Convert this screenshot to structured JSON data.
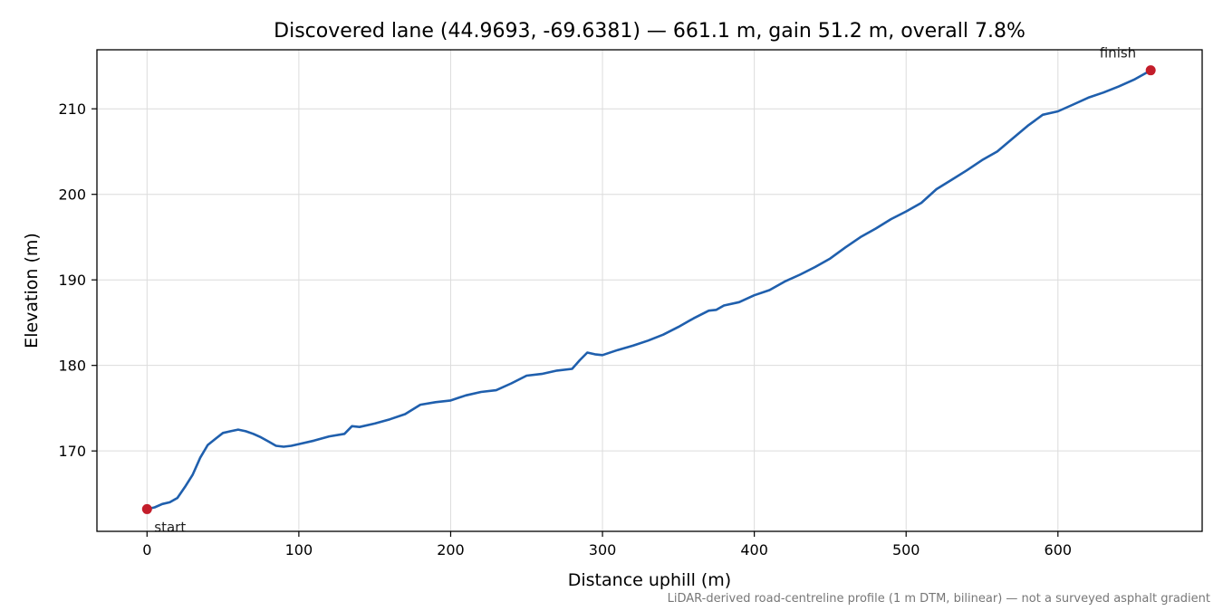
{
  "chart_data": {
    "type": "line",
    "title": "Discovered lane (44.9693, -69.6381) — 661.1 m, gain 51.2 m, overall 7.8%",
    "xlabel": "Distance uphill (m)",
    "ylabel": "Elevation (m)",
    "footnote": "LiDAR-derived road-centreline profile (1 m DTM, bilinear) — not a surveyed asphalt gradient",
    "xlim": [
      -33,
      695
    ],
    "ylim": [
      160.6,
      216.9
    ],
    "xticks": [
      0,
      100,
      200,
      300,
      400,
      500,
      600
    ],
    "yticks": [
      170,
      180,
      190,
      200,
      210
    ],
    "grid": true,
    "series": [
      {
        "color": "#1f5fad",
        "x": [
          0,
          5,
          10,
          15,
          20,
          25,
          30,
          35,
          40,
          45,
          50,
          55,
          60,
          65,
          70,
          75,
          80,
          85,
          90,
          95,
          100,
          110,
          120,
          130,
          135,
          140,
          150,
          160,
          170,
          180,
          190,
          200,
          210,
          220,
          230,
          240,
          250,
          260,
          270,
          280,
          285,
          290,
          295,
          300,
          310,
          320,
          330,
          340,
          350,
          360,
          370,
          375,
          380,
          390,
          400,
          410,
          420,
          430,
          440,
          450,
          460,
          470,
          480,
          490,
          500,
          510,
          520,
          530,
          540,
          550,
          560,
          570,
          580,
          590,
          600,
          610,
          620,
          630,
          640,
          650,
          661.1
        ],
        "y": [
          163.2,
          163.4,
          163.8,
          164.0,
          164.5,
          165.8,
          167.2,
          169.2,
          170.7,
          171.4,
          172.1,
          172.3,
          172.5,
          172.3,
          172.0,
          171.6,
          171.1,
          170.6,
          170.5,
          170.6,
          170.8,
          171.2,
          171.7,
          172.0,
          172.9,
          172.8,
          173.2,
          173.7,
          174.3,
          175.4,
          175.7,
          175.9,
          176.5,
          176.9,
          177.1,
          177.9,
          178.8,
          179.0,
          179.4,
          179.6,
          180.6,
          181.5,
          181.3,
          181.2,
          181.8,
          182.3,
          182.9,
          183.6,
          184.5,
          185.5,
          186.4,
          186.5,
          187.0,
          187.4,
          188.2,
          188.8,
          189.8,
          190.6,
          191.5,
          192.5,
          193.8,
          195.0,
          196.0,
          197.1,
          198.0,
          199.0,
          200.6,
          201.7,
          202.8,
          204.0,
          205.0,
          206.5,
          208.0,
          209.3,
          209.7,
          210.5,
          211.3,
          211.9,
          212.6,
          213.4,
          214.5
        ]
      }
    ],
    "markers": [
      {
        "x": 0,
        "y": 163.2,
        "label": "start",
        "color": "#c31d2a"
      },
      {
        "x": 661.1,
        "y": 214.5,
        "label": "finish",
        "color": "#c31d2a"
      }
    ]
  }
}
